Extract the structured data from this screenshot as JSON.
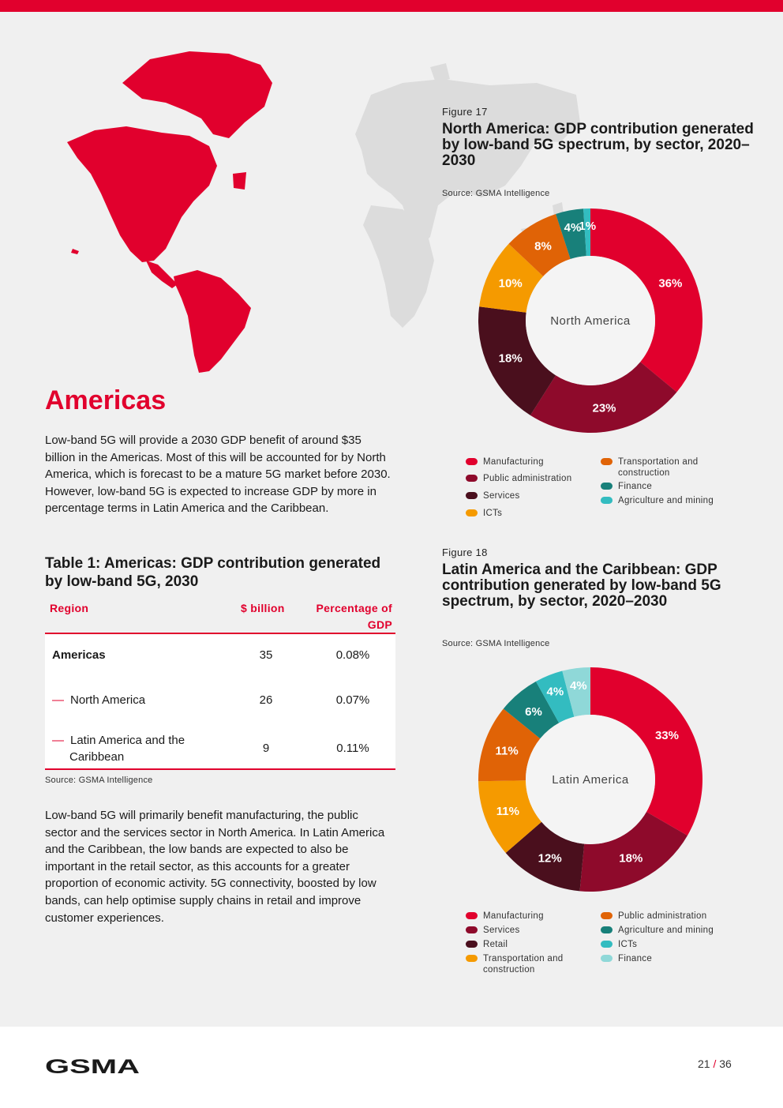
{
  "section_title": "Americas",
  "intro": "Low-band 5G will provide a 2030 GDP benefit of around $35 billion in the Americas. Most of this will be accounted for by North America, which is forecast to be a mature 5G market before 2030. However, low-band 5G is expected to increase GDP by more in percentage terms in Latin America and the Caribbean.",
  "table": {
    "title": "Table 1: Americas: GDP contribution generated by low-band 5G, 2030",
    "headers": [
      "Region",
      "$ billion",
      "Percentage of GDP"
    ],
    "rows": [
      {
        "region": "Americas",
        "value": "35",
        "pct": "0.08%"
      },
      {
        "region": "North America",
        "value": "26",
        "pct": "0.07%"
      },
      {
        "region": "Latin America and the Caribbean",
        "value": "9",
        "pct": "0.11%"
      }
    ],
    "source": "Source: GSMA Intelligence"
  },
  "closing": "Low-band 5G will primarily benefit manufacturing, the public sector and the services sector in North America. In Latin America and the Caribbean, the low bands are expected to also be important in the retail sector, as this accounts for a greater proportion of economic activity. 5G connectivity, boosted by low bands, can help optimise supply chains in retail and improve customer experiences.",
  "chart_data": [
    {
      "type": "pie",
      "figure_label": "Figure 17",
      "title": "North America: GDP contribution generated by low-band 5G spectrum, by sector, 2020–2030",
      "source": "Source: GSMA Intelligence",
      "center_label": "North America",
      "categories": [
        "Manufacturing",
        "Public administration",
        "Services",
        "ICTs",
        "Transportation and construction",
        "Finance",
        "Agriculture and mining"
      ],
      "values": [
        36,
        23,
        18,
        10,
        8,
        4,
        1
      ],
      "labels": [
        "36%",
        "23%",
        "18%",
        "10%",
        "8%",
        "4%",
        "1%"
      ],
      "colors": [
        "#e1002d",
        "#8e0a2b",
        "#4a0f1d",
        "#f59a00",
        "#e06306",
        "#18807a",
        "#33bcc0"
      ]
    },
    {
      "type": "pie",
      "figure_label": "Figure 18",
      "title": "Latin America and the Caribbean: GDP contribution generated by low-band 5G spectrum, by sector, 2020–2030",
      "source": "Source: GSMA Intelligence",
      "center_label": "Latin America",
      "categories": [
        "Manufacturing",
        "Services",
        "Retail",
        "Transportation and construction",
        "Public administration",
        "Agriculture and mining",
        "ICTs",
        "Finance"
      ],
      "values": [
        33,
        18,
        12,
        11,
        11,
        6,
        4,
        4
      ],
      "labels": [
        "33%",
        "18%",
        "12%",
        "11%",
        "11%",
        "6%",
        "4%",
        "4%"
      ],
      "colors": [
        "#e1002d",
        "#8e0a2b",
        "#4a0f1d",
        "#f59a00",
        "#e06306",
        "#18807a",
        "#33bcc0",
        "#8fd8d8"
      ]
    }
  ],
  "legends": [
    {
      "items": [
        "Manufacturing",
        "Public administration",
        "Services",
        "ICTs",
        "Transportation and construction",
        "Finance",
        "Agriculture and mining"
      ]
    },
    {
      "items": [
        "Manufacturing",
        "Services",
        "Retail",
        "Transportation and construction",
        "Public administration",
        "Agriculture and mining",
        "ICTs",
        "Finance"
      ]
    }
  ],
  "footer": {
    "brand": "GSMA",
    "page": "21",
    "total": "36",
    "separator": "/"
  },
  "colors": {
    "brand_red": "#e1002d"
  }
}
